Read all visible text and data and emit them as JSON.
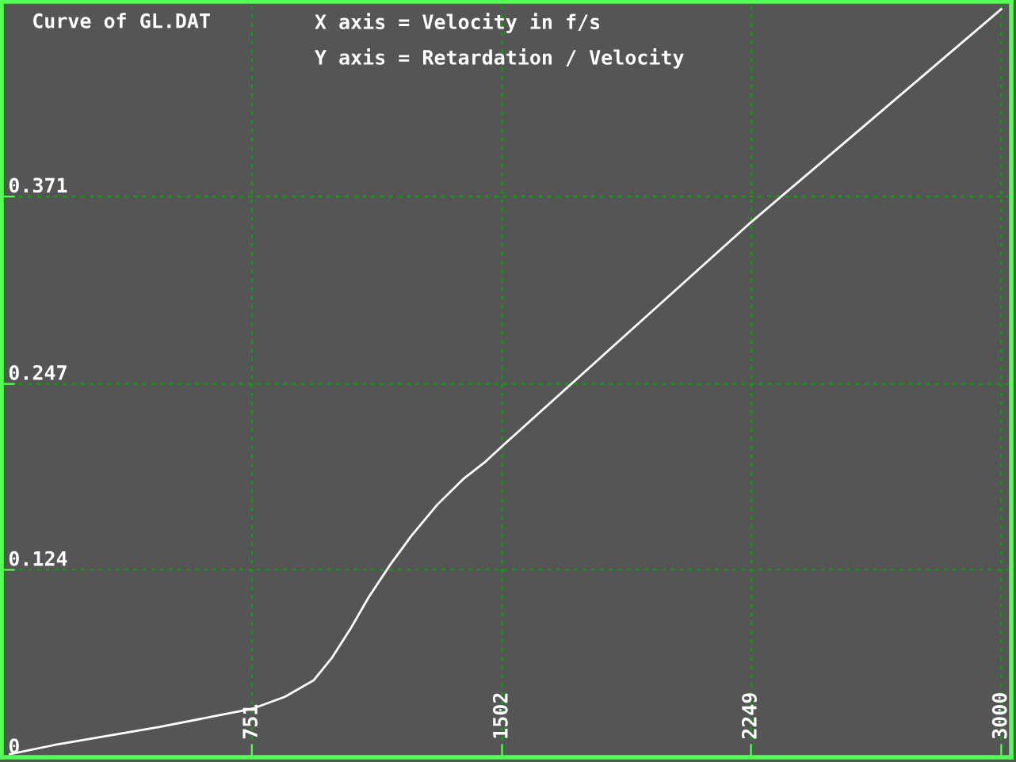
{
  "chart_data": {
    "type": "line",
    "title": "Curve of GL.DAT",
    "annotations": [
      "X axis = Velocity in f/s",
      "Y axis = Retardation / Velocity"
    ],
    "x": [
      25,
      156,
      472,
      751,
      850,
      937,
      992,
      1047,
      1102,
      1165,
      1228,
      1307,
      1385,
      1449,
      1503,
      2249,
      3000
    ],
    "series": [
      {
        "color": "#ffffff",
        "values": [
          0.002,
          0.008,
          0.02,
          0.032,
          0.04,
          0.051,
          0.066,
          0.085,
          0.106,
          0.127,
          0.146,
          0.167,
          0.184,
          0.195,
          0.206,
          0.354,
          0.495
        ]
      }
    ],
    "xlim": [
      0,
      3030
    ],
    "xticks": [
      751,
      1502,
      2249,
      3000
    ],
    "ylim": [
      0,
      0.5
    ],
    "yticks": [
      0,
      0.124,
      0.247,
      0.371
    ],
    "grid": true,
    "line_style": "solid",
    "marker": "none"
  }
}
